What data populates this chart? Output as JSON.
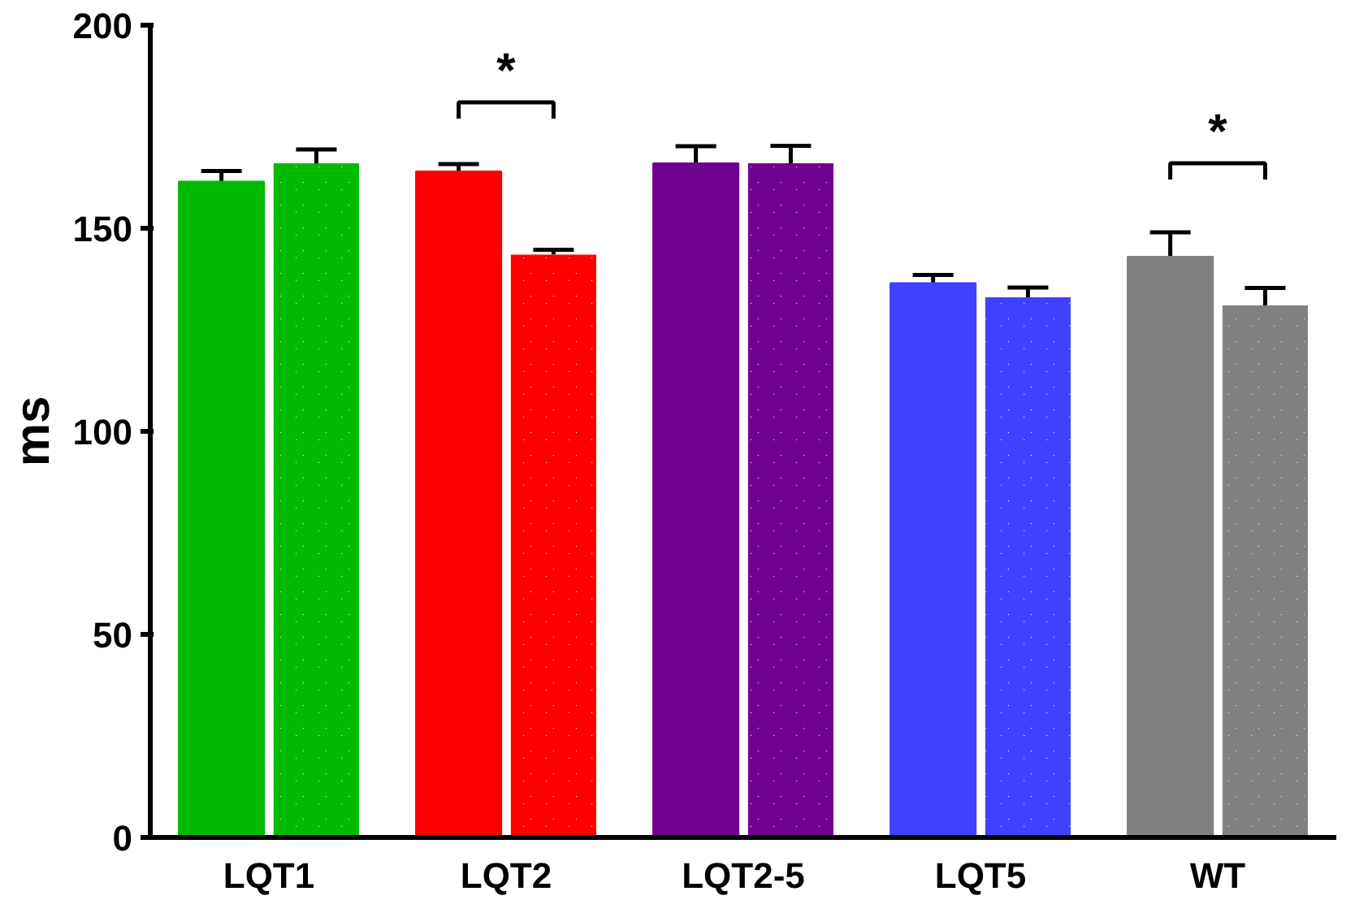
{
  "chart_data": {
    "type": "bar",
    "ylabel": "ms",
    "categories": [
      "LQT1",
      "LQT2",
      "LQT2-5",
      "LQT5",
      "WT"
    ],
    "series": [
      {
        "colors": [
          "#00bb00",
          "#ff0000",
          "#700090",
          "#4040ff",
          "#808080"
        ],
        "values": [
          161.5,
          164,
          166,
          136.5,
          143
        ],
        "errors": [
          2.6,
          1.8,
          4.2,
          2,
          6
        ]
      },
      {
        "colors": [
          "#00bb00",
          "#ff0000",
          "#700090",
          "#4040ff",
          "#808080"
        ],
        "values": [
          166,
          143.5,
          166,
          133,
          131
        ],
        "errors": [
          3.4,
          1.2,
          4.3,
          2.4,
          4.3
        ]
      }
    ],
    "ylim": [
      0,
      200
    ],
    "yticks": [
      0,
      50,
      100,
      150,
      200
    ],
    "grid": false,
    "annotations": [
      "*",
      "*"
    ]
  }
}
